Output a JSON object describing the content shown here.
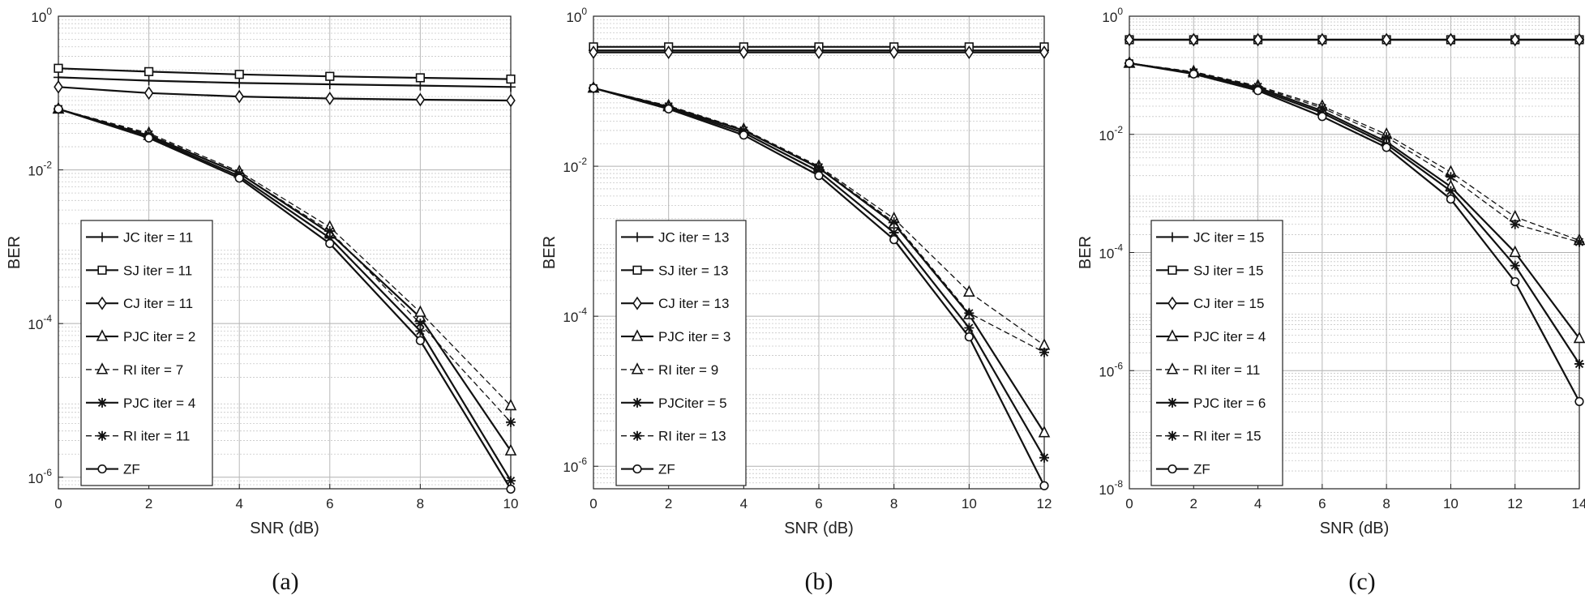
{
  "figure": {
    "captions": [
      "(a)",
      "(b)",
      "(c)"
    ]
  },
  "chart_data": [
    {
      "type": "line",
      "panel": "(a)",
      "xlabel": "SNR (dB)",
      "ylabel": "BER",
      "yscale": "log",
      "xlim": [
        0,
        10
      ],
      "ylim_exp": [
        -6.15,
        0
      ],
      "xticks": [
        0,
        2,
        4,
        6,
        8,
        10
      ],
      "yticks_exp": [
        -6,
        -4,
        -2,
        0
      ],
      "x": [
        0,
        2,
        4,
        6,
        8,
        10
      ],
      "series": [
        {
          "name": "JC iter = 11",
          "marker": "plus",
          "dash": false,
          "values": [
            0.16,
            0.145,
            0.135,
            0.13,
            0.125,
            0.12
          ]
        },
        {
          "name": "SJ iter = 11",
          "marker": "square",
          "dash": false,
          "values": [
            0.21,
            0.19,
            0.175,
            0.165,
            0.158,
            0.152
          ]
        },
        {
          "name": "CJ iter = 11",
          "marker": "diamond",
          "dash": false,
          "values": [
            0.12,
            0.1,
            0.09,
            0.085,
            0.082,
            0.08
          ]
        },
        {
          "name": "PJC iter = 2",
          "marker": "triangle",
          "dash": false,
          "values": [
            0.062,
            0.028,
            0.009,
            0.0015,
            0.00012,
            2.2e-06
          ]
        },
        {
          "name": "RI iter = 7",
          "marker": "triangle",
          "dash": true,
          "values": [
            0.062,
            0.03,
            0.0095,
            0.0018,
            0.00014,
            8.5e-06
          ]
        },
        {
          "name": "PJC iter = 4",
          "marker": "star",
          "dash": false,
          "values": [
            0.062,
            0.027,
            0.0083,
            0.0013,
            8e-05,
            9e-07
          ]
        },
        {
          "name": "RI iter = 11",
          "marker": "star",
          "dash": true,
          "values": [
            0.062,
            0.029,
            0.009,
            0.0016,
            0.0001,
            5.2e-06
          ]
        },
        {
          "name": "ZF",
          "marker": "circle",
          "dash": false,
          "values": [
            0.062,
            0.026,
            0.0078,
            0.0011,
            6e-05,
            7e-07
          ]
        }
      ]
    },
    {
      "type": "line",
      "panel": "(b)",
      "xlabel": "SNR (dB)",
      "ylabel": "BER",
      "yscale": "log",
      "xlim": [
        0,
        12
      ],
      "ylim_exp": [
        -6.3,
        0
      ],
      "xticks": [
        0,
        2,
        4,
        6,
        8,
        10,
        12
      ],
      "yticks_exp": [
        -6,
        -4,
        -2,
        0
      ],
      "x": [
        0,
        2,
        4,
        6,
        8,
        10,
        12
      ],
      "series": [
        {
          "name": "JC iter = 13",
          "marker": "plus",
          "dash": false,
          "values": [
            0.35,
            0.35,
            0.35,
            0.35,
            0.35,
            0.35,
            0.35
          ]
        },
        {
          "name": "SJ iter = 13",
          "marker": "square",
          "dash": false,
          "values": [
            0.39,
            0.39,
            0.39,
            0.39,
            0.39,
            0.39,
            0.39
          ]
        },
        {
          "name": "CJ iter = 13",
          "marker": "diamond",
          "dash": false,
          "values": [
            0.33,
            0.33,
            0.33,
            0.33,
            0.33,
            0.33,
            0.33
          ]
        },
        {
          "name": "PJC iter = 3",
          "marker": "triangle",
          "dash": false,
          "values": [
            0.11,
            0.062,
            0.03,
            0.0095,
            0.0017,
            0.000105,
            2.8e-06
          ]
        },
        {
          "name": "RI iter = 9",
          "marker": "triangle",
          "dash": true,
          "values": [
            0.11,
            0.064,
            0.031,
            0.01,
            0.002,
            0.00021,
            4.1e-05
          ]
        },
        {
          "name": "PJCiter = 5",
          "marker": "star",
          "dash": false,
          "values": [
            0.11,
            0.06,
            0.028,
            0.0085,
            0.0013,
            7e-05,
            1.3e-06
          ]
        },
        {
          "name": "RI iter = 13",
          "marker": "star",
          "dash": true,
          "values": [
            0.11,
            0.063,
            0.03,
            0.0097,
            0.0018,
            0.00011,
            3.3e-05
          ]
        },
        {
          "name": "ZF",
          "marker": "circle",
          "dash": false,
          "values": [
            0.11,
            0.058,
            0.026,
            0.0075,
            0.00105,
            5.3e-05,
            5.5e-07
          ]
        }
      ]
    },
    {
      "type": "line",
      "panel": "(c)",
      "xlabel": "SNR (dB)",
      "ylabel": "BER",
      "yscale": "log",
      "xlim": [
        0,
        14
      ],
      "ylim_exp": [
        -8,
        0
      ],
      "xticks": [
        0,
        2,
        4,
        6,
        8,
        10,
        12,
        14
      ],
      "yticks_exp": [
        -8,
        -6,
        -4,
        -2,
        0
      ],
      "x": [
        0,
        2,
        4,
        6,
        8,
        10,
        12,
        14
      ],
      "series": [
        {
          "name": "JC iter = 15",
          "marker": "plus",
          "dash": false,
          "values": [
            0.4,
            0.4,
            0.4,
            0.4,
            0.4,
            0.4,
            0.4,
            0.4
          ]
        },
        {
          "name": "SJ iter = 15",
          "marker": "square",
          "dash": false,
          "values": [
            0.4,
            0.4,
            0.4,
            0.4,
            0.4,
            0.4,
            0.4,
            0.4
          ]
        },
        {
          "name": "CJ iter = 15",
          "marker": "diamond",
          "dash": false,
          "values": [
            0.4,
            0.4,
            0.4,
            0.4,
            0.4,
            0.4,
            0.4,
            0.4
          ]
        },
        {
          "name": "PJC iter = 4",
          "marker": "triangle",
          "dash": false,
          "values": [
            0.16,
            0.11,
            0.062,
            0.025,
            0.0075,
            0.0013,
            0.0001,
            3.5e-06
          ]
        },
        {
          "name": "RI iter = 11",
          "marker": "triangle",
          "dash": true,
          "values": [
            0.16,
            0.115,
            0.066,
            0.03,
            0.01,
            0.0023,
            0.0004,
            0.00016
          ]
        },
        {
          "name": "PJC iter = 6",
          "marker": "star",
          "dash": false,
          "values": [
            0.16,
            0.108,
            0.058,
            0.023,
            0.0068,
            0.0011,
            6e-05,
            1.3e-06
          ]
        },
        {
          "name": "RI iter = 15",
          "marker": "star",
          "dash": true,
          "values": [
            0.16,
            0.113,
            0.064,
            0.028,
            0.009,
            0.0019,
            0.0003,
            0.00015
          ]
        },
        {
          "name": "ZF",
          "marker": "circle",
          "dash": false,
          "values": [
            0.16,
            0.105,
            0.055,
            0.02,
            0.006,
            0.0008,
            3.2e-05,
            3e-07
          ]
        }
      ]
    }
  ]
}
